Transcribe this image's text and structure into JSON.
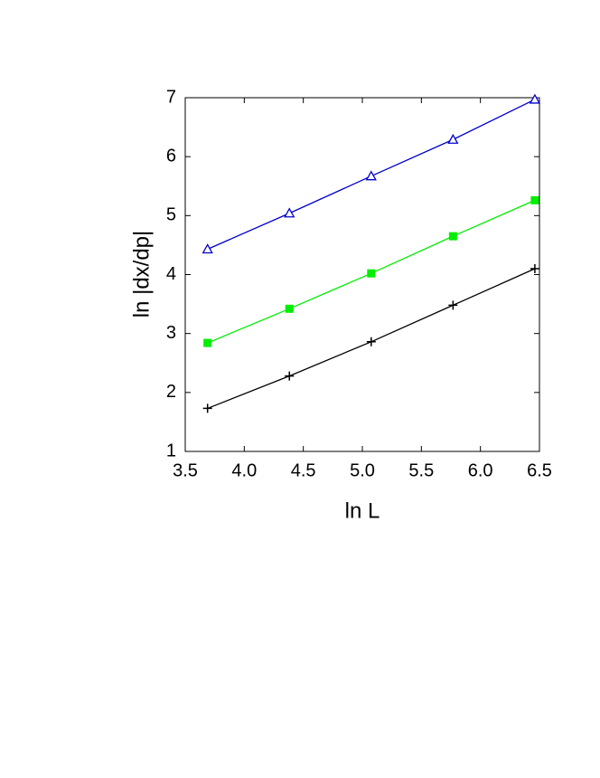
{
  "chart_data": {
    "type": "line",
    "x_label": "ln L",
    "y_label": "ln |dx/dp|",
    "x": [
      3.689,
      4.382,
      5.075,
      5.768,
      6.461
    ],
    "series": [
      {
        "color": "#0000cc",
        "marker": "triangle",
        "values": [
          4.43,
          5.04,
          5.67,
          6.29,
          6.97
        ]
      },
      {
        "color": "#00ee00",
        "marker": "square",
        "values": [
          2.84,
          3.42,
          4.02,
          4.65,
          5.26
        ]
      },
      {
        "color": "#000000",
        "marker": "plus",
        "values": [
          1.73,
          2.28,
          2.86,
          3.48,
          4.1
        ]
      }
    ],
    "xlim": [
      3.5,
      6.5
    ],
    "ylim": [
      1,
      7
    ],
    "xticks": [
      {
        "value": 3.5,
        "label": "3.5"
      },
      {
        "value": 4,
        "label": "4.0"
      },
      {
        "value": 4.5,
        "label": "4.5"
      },
      {
        "value": 5,
        "label": "5.0"
      },
      {
        "value": 5.5,
        "label": "5.5"
      },
      {
        "value": 6,
        "label": "6.0"
      },
      {
        "value": 6.5,
        "label": "6.5"
      }
    ],
    "yticks": [
      1,
      2,
      3,
      4,
      5,
      6,
      7
    ]
  }
}
